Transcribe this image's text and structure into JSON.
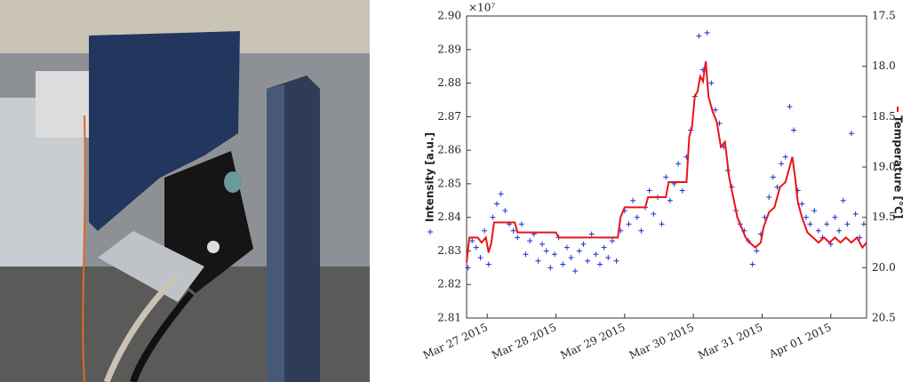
{
  "chart_data": {
    "type": "scatter",
    "y_exponent_label": "×10⁷",
    "xlim": [
      26.7,
      32.52
    ],
    "xticks": [
      {
        "value": 27,
        "label": "Mar 27 2015"
      },
      {
        "value": 28,
        "label": "Mar 28 2015"
      },
      {
        "value": 29,
        "label": "Mar 29 2015"
      },
      {
        "value": 30,
        "label": "Mar 30 2015"
      },
      {
        "value": 31,
        "label": "Mar 31 2015"
      },
      {
        "value": 32,
        "label": "Apr 01 2015"
      }
    ],
    "ylim": [
      2.81,
      2.9
    ],
    "yticks": [
      {
        "value": 2.81,
        "label": "2.81"
      },
      {
        "value": 2.82,
        "label": "2.82"
      },
      {
        "value": 2.83,
        "label": "2.83"
      },
      {
        "value": 2.84,
        "label": "2.84"
      },
      {
        "value": 2.85,
        "label": "2.85"
      },
      {
        "value": 2.86,
        "label": "2.86"
      },
      {
        "value": 2.87,
        "label": "2.87"
      },
      {
        "value": 2.88,
        "label": "2.88"
      },
      {
        "value": 2.89,
        "label": "2.89"
      },
      {
        "value": 2.9,
        "label": "2.90"
      }
    ],
    "y2lim": [
      20.5,
      17.5
    ],
    "y2ticks": [
      {
        "value": 17.5,
        "label": "17.5"
      },
      {
        "value": 18,
        "label": "18.0"
      },
      {
        "value": 18.5,
        "label": "18.5"
      },
      {
        "value": 19,
        "label": "19.0"
      },
      {
        "value": 19.5,
        "label": "19.5"
      },
      {
        "value": 20,
        "label": "20.0"
      },
      {
        "value": 20.5,
        "label": "20.5"
      }
    ],
    "series": [
      {
        "name": "Intensity [a.u.]",
        "type": "scatter",
        "color": "#1f2fd0",
        "x": [
          26.72,
          26.78,
          26.84,
          26.9,
          26.96,
          27.02,
          27.08,
          27.14,
          27.2,
          27.26,
          27.32,
          27.38,
          27.44,
          27.5,
          27.56,
          27.62,
          27.68,
          27.74,
          27.8,
          27.86,
          27.92,
          27.98,
          28.04,
          28.1,
          28.16,
          28.22,
          28.28,
          28.34,
          28.4,
          28.46,
          28.52,
          28.58,
          28.64,
          28.7,
          28.76,
          28.82,
          28.88,
          28.94,
          29.0,
          29.06,
          29.12,
          29.18,
          29.24,
          29.3,
          29.36,
          29.42,
          29.48,
          29.54,
          29.6,
          29.66,
          29.72,
          29.78,
          29.84,
          29.9,
          29.96,
          30.02,
          30.08,
          30.14,
          30.2,
          30.26,
          30.32,
          30.38,
          30.44,
          30.5,
          30.56,
          30.62,
          30.68,
          30.74,
          30.8,
          30.86,
          30.92,
          30.98,
          31.04,
          31.1,
          31.16,
          31.22,
          31.28,
          31.34,
          31.4,
          31.46,
          31.52,
          31.58,
          31.64,
          31.7,
          31.76,
          31.82,
          31.88,
          31.94,
          32.0,
          32.06,
          32.12,
          32.18,
          32.24,
          32.3,
          32.36,
          32.42,
          32.48
        ],
        "values": [
          2.825,
          2.833,
          2.831,
          2.828,
          2.836,
          2.826,
          2.84,
          2.844,
          2.847,
          2.842,
          2.838,
          2.836,
          2.834,
          2.838,
          2.829,
          2.833,
          2.835,
          2.827,
          2.832,
          2.83,
          2.825,
          2.829,
          2.834,
          2.826,
          2.831,
          2.828,
          2.824,
          2.83,
          2.832,
          2.827,
          2.835,
          2.829,
          2.826,
          2.831,
          2.828,
          2.833,
          2.827,
          2.836,
          2.842,
          2.838,
          2.845,
          2.84,
          2.836,
          2.843,
          2.848,
          2.841,
          2.846,
          2.838,
          2.852,
          2.845,
          2.85,
          2.856,
          2.848,
          2.858,
          2.866,
          2.876,
          2.894,
          2.884,
          2.895,
          2.88,
          2.872,
          2.868,
          2.861,
          2.854,
          2.849,
          2.842,
          2.838,
          2.836,
          2.833,
          2.826,
          2.83,
          2.835,
          2.84,
          2.846,
          2.852,
          2.849,
          2.856,
          2.858,
          2.873,
          2.866,
          2.848,
          2.844,
          2.84,
          2.838,
          2.842,
          2.836,
          2.834,
          2.838,
          2.832,
          2.84,
          2.836,
          2.845,
          2.838,
          2.865,
          2.841,
          2.834,
          2.838
        ]
      },
      {
        "name": "Temperature [°C]",
        "type": "line",
        "axis": "y2",
        "color": "#e8141a",
        "x": [
          26.7,
          26.74,
          26.8,
          26.86,
          26.92,
          26.98,
          27.02,
          27.06,
          27.1,
          27.4,
          27.44,
          28.0,
          28.04,
          28.9,
          28.94,
          29.0,
          29.3,
          29.34,
          29.6,
          29.64,
          29.9,
          29.94,
          29.98,
          30.02,
          30.06,
          30.1,
          30.14,
          30.18,
          30.22,
          30.28,
          30.34,
          30.4,
          30.46,
          30.52,
          30.58,
          30.64,
          30.7,
          30.76,
          30.82,
          30.9,
          30.98,
          31.02,
          31.1,
          31.18,
          31.26,
          31.34,
          31.4,
          31.44,
          31.48,
          31.52,
          31.58,
          31.66,
          31.74,
          31.82,
          31.9,
          31.98,
          32.06,
          32.14,
          32.22,
          32.3,
          32.38,
          32.46,
          32.52
        ],
        "values": [
          19.95,
          19.7,
          19.7,
          19.7,
          19.75,
          19.7,
          19.85,
          19.75,
          19.55,
          19.55,
          19.65,
          19.65,
          19.7,
          19.7,
          19.5,
          19.4,
          19.4,
          19.3,
          19.3,
          19.15,
          19.15,
          18.7,
          18.6,
          18.3,
          18.25,
          18.1,
          18.15,
          17.95,
          18.3,
          18.45,
          18.55,
          18.8,
          18.75,
          19.1,
          19.3,
          19.5,
          19.6,
          19.7,
          19.75,
          19.8,
          19.75,
          19.6,
          19.45,
          19.4,
          19.2,
          19.15,
          19.0,
          18.9,
          19.1,
          19.35,
          19.5,
          19.65,
          19.7,
          19.75,
          19.7,
          19.75,
          19.7,
          19.75,
          19.7,
          19.75,
          19.7,
          19.8,
          19.75
        ]
      }
    ]
  }
}
